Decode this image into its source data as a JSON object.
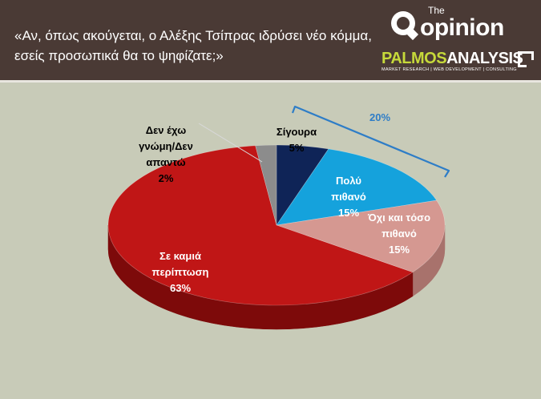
{
  "header": {
    "question": "«Αν, όπως ακούγεται, ο Αλέξης Τσίπρας ιδρύσει νέο κόμμα, εσείς προσωπικά θα το ψηφίζατε;»",
    "logo_the": "The",
    "logo_opinion": "opinion",
    "logo_palmos_a": "PALMOS",
    "logo_palmos_b": "ANALYSIS",
    "logo_palmos_tagline": "MARKET RESEARCH | WEB DEVELOPMENT | CONSULTING"
  },
  "chart_data": {
    "type": "pie",
    "title": "«Αν, όπως ακούγεται, ο Αλέξης Τσίπρας ιδρύσει νέο κόμμα, εσείς προσωπικά θα το ψηφίζατε;»",
    "slices": [
      {
        "label_lines": [
          "Σίγουρα"
        ],
        "value": 5,
        "value_label": "5%",
        "color": "#0f2457",
        "side": "#081538",
        "text_color": "#000000"
      },
      {
        "label_lines": [
          "Πολύ",
          "πιθανό"
        ],
        "value": 15,
        "value_label": "15%",
        "color": "#15a2dc",
        "side": "#0d75a3",
        "text_color": "#ffffff"
      },
      {
        "label_lines": [
          "Όχι και τόσο",
          "πιθανό"
        ],
        "value": 15,
        "value_label": "15%",
        "color": "#d59891",
        "side": "#a8726c",
        "text_color": "#ffffff"
      },
      {
        "label_lines": [
          "Σε καμιά",
          "περίπτωση"
        ],
        "value": 63,
        "value_label": "63%",
        "color": "#c01616",
        "side": "#7d0a0a",
        "text_color": "#ffffff"
      },
      {
        "label_lines": [
          "Δεν έχω",
          "γνώμη/Δεν",
          "απαντώ"
        ],
        "value": 2,
        "value_label": "2%",
        "color": "#8c8c8c",
        "side": "#5e5e5e",
        "text_color": "#000000"
      }
    ],
    "bracket_label": "20%",
    "bracket_color": "#2e7dc7"
  }
}
